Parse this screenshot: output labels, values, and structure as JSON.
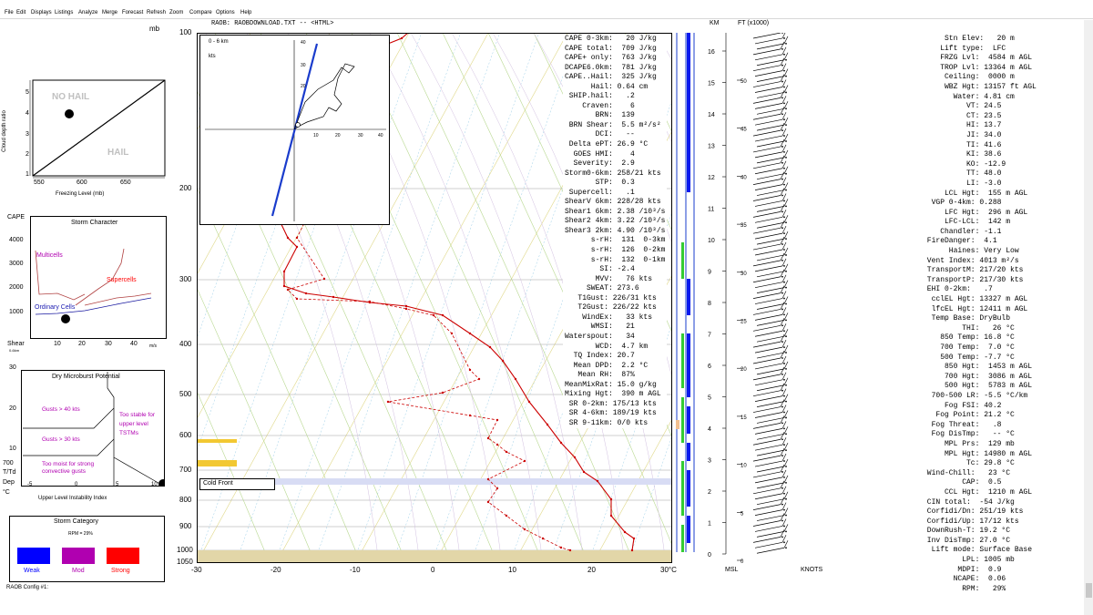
{
  "menu": [
    "File",
    "Edit",
    "Displays",
    "Listings",
    "Analyze",
    "Merge",
    "Forecast",
    "Refresh",
    "Zoom",
    "Compare",
    "Options",
    "Help"
  ],
  "title_line": "RAOB:  RAOBDOWNLOAD.TXT   --   <HTML>",
  "right_header": {
    "km": "KM",
    "ft": "FT (x1000)",
    "msl": "MSL",
    "knots": "KNOTS"
  },
  "hail_panel": {
    "mb_label": "mb",
    "ylabel": "Cloud depth ratio",
    "xlabel": "Freezing Level (mb)",
    "no_hail": "NO HAIL",
    "hail": "HAIL",
    "x_ticks": [
      "550",
      "600",
      "650"
    ],
    "y_ticks": [
      "5",
      "4",
      "3",
      "2",
      "1"
    ]
  },
  "storm_character": {
    "title": "Storm Character",
    "cape_label": "CAPE",
    "shear_label": "Shear",
    "shear_unit": "0-6km",
    "shear_ms": "m/s",
    "y_ticks": [
      "4000",
      "3000",
      "2000",
      "1000"
    ],
    "x_ticks": [
      "10",
      "20",
      "30",
      "40"
    ],
    "multicells": "Multicells",
    "supercells": "Supercells",
    "ordinary": "Ordinary Cells"
  },
  "microburst": {
    "title": "Dry Microburst Potential",
    "gusts40": "Gusts > 40 kts",
    "gusts30": "Gusts > 30 kts",
    "too_moist": "Too moist for strong convective gusts",
    "too_stable": "Too stable for upper level TSTMs",
    "side_700": "700",
    "side_tttd": "T/Td",
    "side_dep": "Dep",
    "side_c": "°C",
    "y_ticks": [
      "30",
      "20",
      "10"
    ],
    "x_ticks": [
      "-5",
      "0",
      "5",
      "10"
    ],
    "xlabel": "Upper Level Instability Index"
  },
  "storm_category": {
    "title": "Storm Category",
    "rpm": "RPM = 29%",
    "weak": "Weak",
    "mod": "Mod",
    "strong": "Strong",
    "weak_color": "#0000ff",
    "mod_color": "#b000b0",
    "strong_color": "#ff0000"
  },
  "footer": "RAOB Config #1:",
  "skewt": {
    "pressure_ticks": [
      "100",
      "200",
      "300",
      "400",
      "500",
      "600",
      "700",
      "800",
      "900",
      "1000",
      "1050"
    ],
    "temp_ticks": [
      "-30",
      "-20",
      "-10",
      "0",
      "10",
      "20",
      "30°C"
    ],
    "cold_front": "Cold Front"
  },
  "hodograph": {
    "label_range": "0 - 6 km",
    "label_unit": "kts",
    "ticks": [
      "10",
      "20",
      "30",
      "40"
    ]
  },
  "center_list": [
    "CAPE 0-3km:   20 J/kg",
    "CAPE total:  709 J/kg",
    "CAPE+ only:  763 J/kg",
    "DCAPE6.0km:  781 J/kg",
    "CAPE..Hail:  325 J/kg",
    "      Hail: 0.64 cm",
    " SHIP.hail:   .2",
    "    Craven:    6",
    "       BRN:  139",
    " BRN Shear:  5.5 m²/s²",
    "       DCI:   --",
    " Delta ePT: 26.9 °C",
    "  GOES HMI:    4",
    "  Severity:  2.9",
    "Storm0-6km: 258/21 kts",
    "       STP:  0.3",
    " Supercell:   .1",
    "ShearV 6km: 228/28 kts",
    "Shear1 6km: 2.38 /10³/s",
    "Shear2 4km: 3.22 /10³/s",
    "Shear3 2km: 4.90 /10³/s",
    "      s-rH:  131  0-3km",
    "      s-rH:  126  0-2km",
    "      s-rH:  132  0-1km",
    "        SI: -2.4",
    "       MVV:   76 kts",
    "     SWEAT: 273.6",
    "   T1Gust: 226/31 kts",
    "   T2Gust: 226/22 kts",
    "    WindEx:   33 kts",
    "      WMSI:   21",
    "Waterspout:   34",
    "       WCD:  4.7 km",
    "  TQ Index: 20.7",
    "  Mean DPD:  2.2 °C",
    "   Mean RH:  87%",
    "MeanMixRat: 15.0 g/kg",
    "Mixing Hgt:  390 m AGL",
    " SR 0-2km: 175/13 kts",
    " SR 4-6km: 189/19 kts",
    " SR 9-11km: 0/0 kts"
  ],
  "right_list": [
    "     Stn Elev:   20 m",
    "    Lift type:  LFC",
    "    FRZG Lvl:  4584 m AGL",
    "    TROP Lvl: 13364 m AGL",
    "     Ceiling:  0000 m",
    "     WBZ Hgt: 13157 ft AGL",
    "       Water: 4.81 cm",
    "          VT: 24.5",
    "          CT: 23.5",
    "          HI: 13.7",
    "          JI: 34.0",
    "          TI: 41.6",
    "          KI: 38.6",
    "          KO: -12.9",
    "          TT: 48.0",
    "          LI: -3.0",
    "     LCL Hgt:  155 m AGL",
    "  VGP 0-4km: 0.288",
    "     LFC Hgt:  296 m AGL",
    "     LFC-LCL:  142 m",
    "    Chandler: -1.1",
    " FireDanger:  4.1",
    "      Haines: Very Low",
    " Vent Index: 4013 m²/s",
    " TransportM: 217/20 kts",
    " TransportP: 217/30 kts",
    " EHI 0-2km:   .7",
    "  cclEL Hgt: 13327 m AGL",
    "  lfcEL Hgt: 12411 m AGL",
    "  Temp Base: DryBulb",
    "         THI:   26 °C",
    "    850 Temp: 16.8 °C",
    "    700 Temp:  7.0 °C",
    "    500 Temp: -7.7 °C",
    "     850 Hgt:  1453 m AGL",
    "     700 Hgt:  3086 m AGL",
    "     500 Hgt:  5783 m AGL",
    "  700-500 LR: -5.5 °C/km",
    "     Fog FSI: 40.2",
    "   Fog Point: 21.2 °C",
    "  Fog Threat:   .8",
    "  Fog DisTmp:   -- °C",
    "     MPL Prs:  129 mb",
    "     MPL Hgt: 14980 m AGL",
    "          Tc: 29.8 °C",
    " Wind-Chill:   23 °C",
    "         CAP:  0.5",
    "     CCL Hgt:  1210 m AGL",
    " CIN total:  -54 J/kg",
    " Corfidi/Dn: 251/19 kts",
    " Corfidi/Up: 17/12 kts",
    " DownRush-T: 19.2 °C",
    " Inv DisTmp: 27.0 °C",
    "  Lift mode: Surface Base",
    "         LPL: 1005 mb",
    "        MDPI:  0.9",
    "       NCAPE:  0.06",
    "         RPM:   29%"
  ],
  "km_ticks": [
    "16",
    "15",
    "14",
    "13",
    "12",
    "11",
    "10",
    "9",
    "8",
    "7",
    "6",
    "5",
    "4",
    "3",
    "2",
    "1",
    "0"
  ],
  "ft_ticks": [
    "50",
    "45",
    "40",
    "35",
    "30",
    "25",
    "20",
    "15",
    "10",
    "5",
    "0"
  ]
}
